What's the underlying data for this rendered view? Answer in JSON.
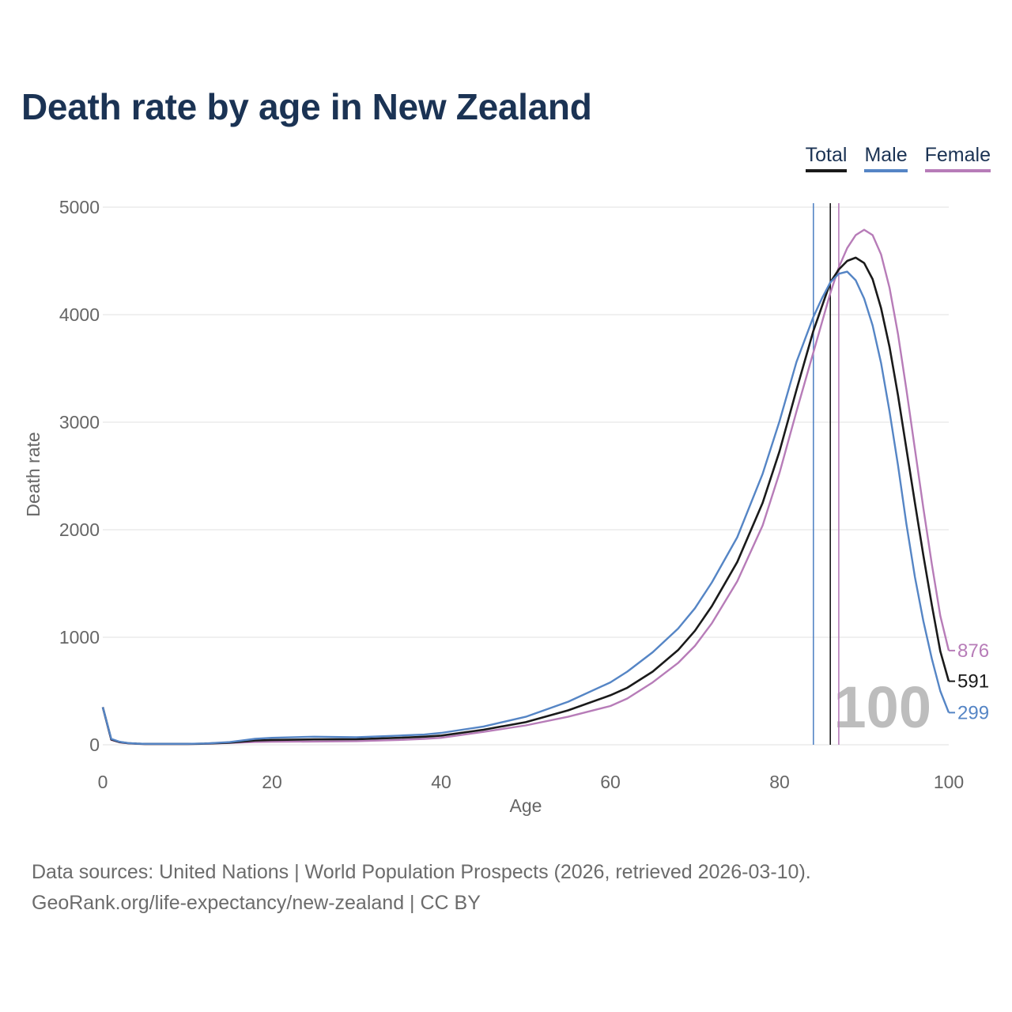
{
  "title": "Death rate by age in New Zealand",
  "legend": [
    {
      "label": "Total",
      "color": "#1a1a1a"
    },
    {
      "label": "Male",
      "color": "#5585c5"
    },
    {
      "label": "Female",
      "color": "#b77cb8"
    }
  ],
  "footer": {
    "line1": "Data sources: United Nations | World Population Prospects (2026, retrieved 2026-03-10).",
    "line2": "GeoRank.org/life-expectancy/new-zealand | CC BY"
  },
  "year_watermark": "100",
  "chart_data": {
    "type": "line",
    "title": "Death rate by age in New Zealand",
    "xlabel": "Age",
    "ylabel": "Death rate",
    "xlim": [
      0,
      100
    ],
    "ylim": [
      0,
      5000
    ],
    "xticks": [
      0,
      20,
      40,
      60,
      80,
      100
    ],
    "yticks": [
      0,
      1000,
      2000,
      3000,
      4000,
      5000
    ],
    "grid": true,
    "vlines": [
      {
        "series": "Male",
        "x": 84
      },
      {
        "series": "Total",
        "x": 86
      },
      {
        "series": "Female",
        "x": 87
      }
    ],
    "series": [
      {
        "name": "Total",
        "color": "#1a1a1a",
        "end_label": "591",
        "points": [
          [
            0,
            350
          ],
          [
            1,
            50
          ],
          [
            2,
            25
          ],
          [
            3,
            15
          ],
          [
            4,
            10
          ],
          [
            5,
            8
          ],
          [
            10,
            8
          ],
          [
            12,
            10
          ],
          [
            15,
            20
          ],
          [
            18,
            40
          ],
          [
            20,
            45
          ],
          [
            25,
            50
          ],
          [
            30,
            52
          ],
          [
            35,
            65
          ],
          [
            38,
            75
          ],
          [
            40,
            85
          ],
          [
            45,
            140
          ],
          [
            50,
            210
          ],
          [
            55,
            320
          ],
          [
            60,
            460
          ],
          [
            62,
            530
          ],
          [
            65,
            680
          ],
          [
            68,
            880
          ],
          [
            70,
            1060
          ],
          [
            72,
            1290
          ],
          [
            75,
            1700
          ],
          [
            78,
            2250
          ],
          [
            80,
            2730
          ],
          [
            82,
            3300
          ],
          [
            84,
            3850
          ],
          [
            86,
            4300
          ],
          [
            87,
            4420
          ],
          [
            88,
            4500
          ],
          [
            89,
            4530
          ],
          [
            90,
            4480
          ],
          [
            91,
            4330
          ],
          [
            92,
            4060
          ],
          [
            93,
            3700
          ],
          [
            94,
            3250
          ],
          [
            95,
            2750
          ],
          [
            96,
            2250
          ],
          [
            97,
            1760
          ],
          [
            98,
            1300
          ],
          [
            99,
            870
          ],
          [
            100,
            591
          ]
        ]
      },
      {
        "name": "Male",
        "color": "#5585c5",
        "end_label": "299",
        "points": [
          [
            0,
            350
          ],
          [
            1,
            55
          ],
          [
            2,
            28
          ],
          [
            3,
            16
          ],
          [
            4,
            11
          ],
          [
            5,
            9
          ],
          [
            10,
            9
          ],
          [
            12,
            12
          ],
          [
            15,
            25
          ],
          [
            18,
            55
          ],
          [
            20,
            65
          ],
          [
            25,
            75
          ],
          [
            30,
            70
          ],
          [
            35,
            85
          ],
          [
            38,
            95
          ],
          [
            40,
            110
          ],
          [
            45,
            170
          ],
          [
            50,
            260
          ],
          [
            55,
            400
          ],
          [
            60,
            580
          ],
          [
            62,
            680
          ],
          [
            65,
            860
          ],
          [
            68,
            1080
          ],
          [
            70,
            1270
          ],
          [
            72,
            1510
          ],
          [
            75,
            1930
          ],
          [
            78,
            2520
          ],
          [
            80,
            3010
          ],
          [
            82,
            3560
          ],
          [
            84,
            3980
          ],
          [
            85,
            4150
          ],
          [
            86,
            4300
          ],
          [
            87,
            4380
          ],
          [
            88,
            4400
          ],
          [
            89,
            4320
          ],
          [
            90,
            4150
          ],
          [
            91,
            3900
          ],
          [
            92,
            3550
          ],
          [
            93,
            3100
          ],
          [
            94,
            2600
          ],
          [
            95,
            2050
          ],
          [
            96,
            1560
          ],
          [
            97,
            1150
          ],
          [
            98,
            800
          ],
          [
            99,
            500
          ],
          [
            100,
            299
          ]
        ]
      },
      {
        "name": "Female",
        "color": "#b77cb8",
        "end_label": "876",
        "points": [
          [
            0,
            350
          ],
          [
            1,
            45
          ],
          [
            2,
            22
          ],
          [
            3,
            13
          ],
          [
            4,
            9
          ],
          [
            5,
            7
          ],
          [
            10,
            7
          ],
          [
            12,
            9
          ],
          [
            15,
            17
          ],
          [
            18,
            25
          ],
          [
            20,
            28
          ],
          [
            25,
            30
          ],
          [
            30,
            34
          ],
          [
            35,
            45
          ],
          [
            38,
            55
          ],
          [
            40,
            65
          ],
          [
            45,
            120
          ],
          [
            50,
            180
          ],
          [
            55,
            260
          ],
          [
            60,
            360
          ],
          [
            62,
            430
          ],
          [
            65,
            580
          ],
          [
            68,
            760
          ],
          [
            70,
            920
          ],
          [
            72,
            1130
          ],
          [
            75,
            1520
          ],
          [
            78,
            2040
          ],
          [
            80,
            2530
          ],
          [
            82,
            3100
          ],
          [
            84,
            3650
          ],
          [
            86,
            4200
          ],
          [
            87,
            4440
          ],
          [
            88,
            4620
          ],
          [
            89,
            4740
          ],
          [
            90,
            4790
          ],
          [
            91,
            4740
          ],
          [
            92,
            4560
          ],
          [
            93,
            4250
          ],
          [
            94,
            3820
          ],
          [
            95,
            3300
          ],
          [
            96,
            2750
          ],
          [
            97,
            2200
          ],
          [
            98,
            1680
          ],
          [
            99,
            1200
          ],
          [
            100,
            876
          ]
        ]
      }
    ]
  }
}
